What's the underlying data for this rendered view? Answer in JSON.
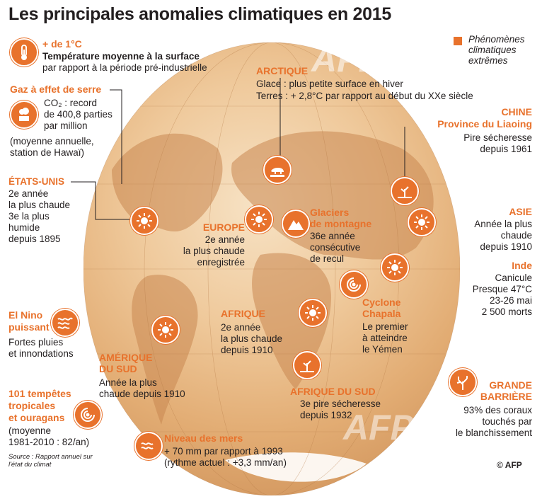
{
  "title": "Les principales anomalies climatiques en 2015",
  "legend": {
    "label": "Phénomènes climatiques extrêmes",
    "color": "#e8722c"
  },
  "watermark": "AFP",
  "credit": "© AFP",
  "source": "Source : Rapport annuel sur l'état du climat",
  "temperature": {
    "value": "+ de 1°C",
    "line1": "Température moyenne à la surface",
    "line2": "par rapport à la période pré-industrielle",
    "icon": "thermometer-icon"
  },
  "ghg": {
    "title": "Gaz à effet de serre",
    "line1": "CO₂ : record",
    "line2": "de 400,8 parties",
    "line3": "par million",
    "note1": "(moyenne annuelle,",
    "note2": "station de Hawaï)",
    "icon": "factory-cloud-icon"
  },
  "usa": {
    "title": "ÉTATS-UNIS",
    "lines": [
      "2e année",
      "la plus chaude",
      "3e la plus",
      "humide",
      "depuis 1895"
    ],
    "icon": "sun-icon"
  },
  "elnino": {
    "title1": "El Nino",
    "title2": "puissant",
    "line1": "Fortes pluies",
    "line2": "et innondations",
    "icon": "waves-icon"
  },
  "storms": {
    "title1": "101 tempêtes",
    "title2": "tropicales",
    "title3": "et ouragans",
    "line1": "(moyenne",
    "line2": "1981-2010 : 82/an)",
    "icon": "hurricane-icon"
  },
  "arctic": {
    "title": "ARCTIQUE",
    "line1": "Glace : plus petite surface en hiver",
    "line2": "Terres : + 2,8°C par rapport au début du XXe siècle",
    "icon": "polar-bear-icon"
  },
  "china": {
    "title": "CHINE",
    "subtitle": "Province du Liaoing",
    "line1": "Pire sécheresse",
    "line2": "depuis 1961",
    "icon": "dry-plant-icon"
  },
  "asia": {
    "title": "ASIE",
    "lines": [
      "Année la plus",
      "chaude",
      "depuis 1910"
    ],
    "icon": "sun-icon"
  },
  "india": {
    "title": "Inde",
    "lines": [
      "Canicule",
      "Presque 47°C",
      "23-26 mai",
      "2 500 morts"
    ],
    "icon": "sun-icon"
  },
  "europe": {
    "title": "EUROPE",
    "lines": [
      "2e année",
      "la plus chaude",
      "enregistrée"
    ],
    "icon": "sun-icon"
  },
  "glaciers": {
    "title1": "Glaciers",
    "title2": "de montagne",
    "lines": [
      "36e année",
      "consécutive",
      "de recul"
    ],
    "icon": "mountain-icon"
  },
  "africa": {
    "title": "AFRIQUE",
    "lines": [
      "2e année",
      "la plus chaude",
      "depuis 1910"
    ],
    "icon": "sun-icon"
  },
  "cyclone": {
    "title1": "Cyclone",
    "title2": "Chapala",
    "lines": [
      "Le premier",
      "à atteindre",
      "le Yémen"
    ],
    "icon": "cyclone-icon"
  },
  "south_america": {
    "title1": "AMÉRIQUE",
    "title2": "DU SUD",
    "line1": "Année la plus",
    "line2": "chaude depuis 1910",
    "icon": "sun-icon"
  },
  "south_africa": {
    "title": "AFRIQUE DU SUD",
    "line1": "3e pire sécheresse",
    "line2": "depuis 1932",
    "icon": "dry-plant-icon"
  },
  "reef": {
    "title1": "GRANDE",
    "title2": "BARRIÈRE",
    "lines": [
      "93% des coraux",
      "touchés par",
      "le blanchissement"
    ],
    "icon": "coral-icon"
  },
  "sea_level": {
    "title": "Niveau des mers",
    "line1": "+ 70 mm par rapport à 1993",
    "line2": "(rythme actuel : +3,3 mm/an)",
    "icon": "waves-icon"
  }
}
